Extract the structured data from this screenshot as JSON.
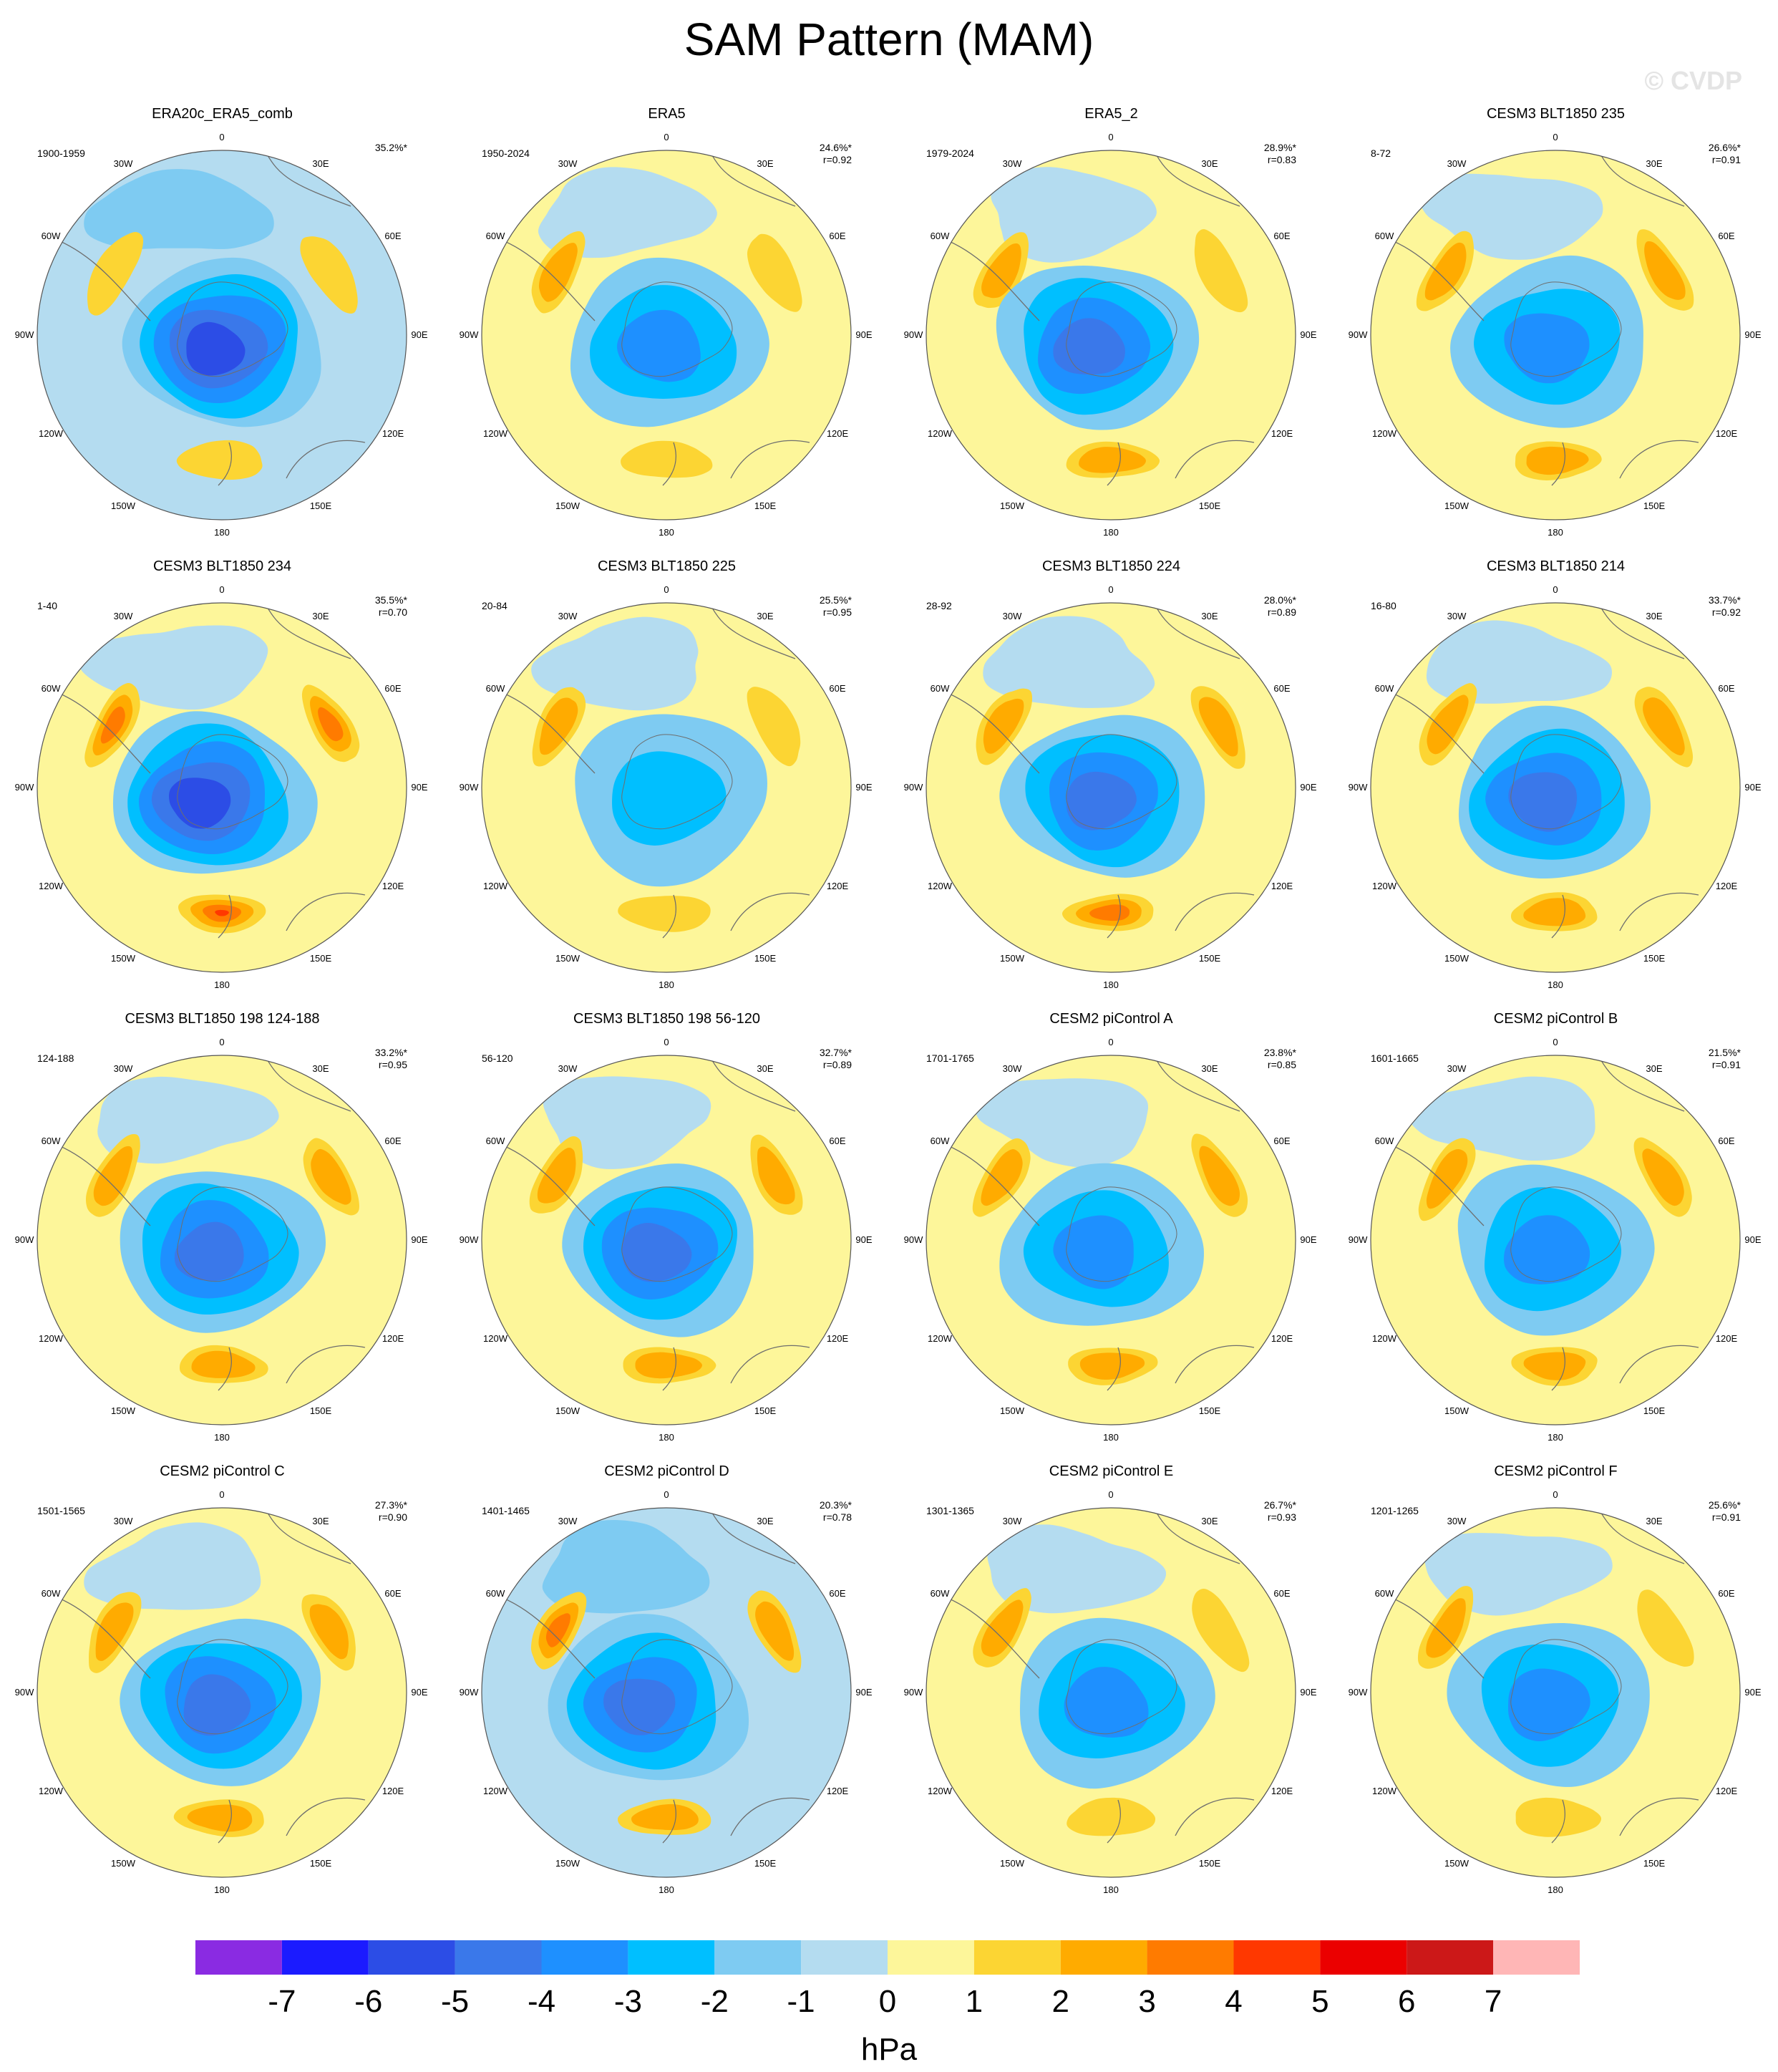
{
  "title": "SAM Pattern (MAM)",
  "watermark": "© CVDP",
  "colors": {
    "background": "#ffffff",
    "coast": "#6e6e6e",
    "ring": "#555555"
  },
  "lon_labels": [
    "0",
    "30E",
    "60E",
    "90E",
    "120E",
    "150E",
    "180",
    "150W",
    "120W",
    "90W",
    "60W",
    "30W"
  ],
  "chart_data": {
    "type": "polar-contour-map",
    "units": "hPa",
    "colorbar": {
      "ticks": [
        "-7",
        "-6",
        "-5",
        "-4",
        "-3",
        "-2",
        "-1",
        "0",
        "1",
        "2",
        "3",
        "4",
        "5",
        "6",
        "7"
      ],
      "colors": [
        "#8a2be2",
        "#1b1bff",
        "#2c4de6",
        "#3a78ea",
        "#1e90ff",
        "#00bfff",
        "#7ecbf2",
        "#b4dcf0",
        "#fdf69a",
        "#fcd533",
        "#ffab00",
        "#ff7b00",
        "#ff3800",
        "#eb0000",
        "#cc1818",
        "#ffb6b6"
      ],
      "levels": [
        -7,
        -6,
        -5,
        -4,
        -3,
        -2,
        -1,
        0,
        1,
        2,
        3,
        4,
        5,
        6,
        7
      ]
    },
    "panels": [
      {
        "title": "ERA20c_ERA5_comb",
        "period": "1900-1959",
        "pct": "35.2%*",
        "r": "",
        "ring": -0.6,
        "low": [
          -5,
          0.5,
          0
        ],
        "high": [
          1,
          1,
          1
        ]
      },
      {
        "title": "ERA5",
        "period": "1950-2024",
        "pct": "24.6%*",
        "r": "r=0.92",
        "ring": 0.2,
        "low": [
          -3,
          0.2,
          0
        ],
        "high": [
          2,
          1,
          1
        ]
      },
      {
        "title": "ERA5_2",
        "period": "1979-2024",
        "pct": "28.9%*",
        "r": "r=0.83",
        "ring": 0.1,
        "low": [
          -4,
          -0.8,
          0
        ],
        "high": [
          2,
          1,
          2
        ]
      },
      {
        "title": "CESM3 BLT1850 235",
        "period": "8-72",
        "pct": "26.6%*",
        "r": "r=0.91",
        "ring": 0.6,
        "low": [
          -3,
          0,
          0
        ],
        "high": [
          2,
          2,
          2
        ]
      },
      {
        "title": "CESM3 BLT1850 234",
        "period": "1-40",
        "pct": "35.5%*",
        "r": "r=0.70",
        "ring": 0.6,
        "low": [
          -5,
          -0.6,
          0
        ],
        "high": [
          3,
          3,
          4
        ]
      },
      {
        "title": "CESM3 BLT1850 225",
        "period": "20-84",
        "pct": "25.5%*",
        "r": "r=0.95",
        "ring": 0.5,
        "low": [
          -2,
          0.4,
          0
        ],
        "high": [
          2,
          1,
          1
        ]
      },
      {
        "title": "CESM3 BLT1850 224",
        "period": "28-92",
        "pct": "28.0%*",
        "r": "r=0.89",
        "ring": 0.4,
        "low": [
          -4,
          0,
          0
        ],
        "high": [
          2,
          2,
          3
        ]
      },
      {
        "title": "CESM3 BLT1850 214",
        "period": "16-80",
        "pct": "33.7%*",
        "r": "r=0.92",
        "ring": 0.8,
        "low": [
          -4,
          0,
          0
        ],
        "high": [
          2,
          2,
          2
        ]
      },
      {
        "title": "CESM3 BLT1850 198 124-188",
        "period": "124-188",
        "pct": "33.2%*",
        "r": "r=0.95",
        "ring": 0.7,
        "low": [
          -4,
          0,
          0
        ],
        "high": [
          2,
          2,
          2
        ]
      },
      {
        "title": "CESM3 BLT1850 198 56-120",
        "period": "56-120",
        "pct": "32.7%*",
        "r": "r=0.89",
        "ring": 0.3,
        "low": [
          -4,
          0,
          0
        ],
        "high": [
          2,
          2,
          2
        ]
      },
      {
        "title": "CESM2 piControl A",
        "period": "1701-1765",
        "pct": "23.8%*",
        "r": "r=0.85",
        "ring": 0.5,
        "low": [
          -3,
          -0.5,
          0
        ],
        "high": [
          2,
          2,
          2
        ]
      },
      {
        "title": "CESM2 piControl B",
        "period": "1601-1665",
        "pct": "21.5%*",
        "r": "r=0.91",
        "ring": 0.5,
        "low": [
          -3,
          0,
          0
        ],
        "high": [
          2,
          2,
          2
        ]
      },
      {
        "title": "CESM2 piControl C",
        "period": "1501-1565",
        "pct": "27.3%*",
        "r": "r=0.90",
        "ring": 0.7,
        "low": [
          -4,
          0.4,
          0
        ],
        "high": [
          2,
          2,
          2
        ]
      },
      {
        "title": "CESM2 piControl D",
        "period": "1401-1465",
        "pct": "20.3%*",
        "r": "r=0.78",
        "ring": -0.2,
        "low": [
          -4,
          -1.2,
          0
        ],
        "high": [
          3,
          2,
          2
        ]
      },
      {
        "title": "CESM2 piControl E",
        "period": "1301-1365",
        "pct": "26.7%*",
        "r": "r=0.93",
        "ring": 0.6,
        "low": [
          -3,
          0.3,
          0
        ],
        "high": [
          2,
          1,
          1
        ]
      },
      {
        "title": "CESM2 piControl F",
        "period": "1201-1265",
        "pct": "25.6%*",
        "r": "r=0.91",
        "ring": 0.6,
        "low": [
          -3,
          0,
          0
        ],
        "high": [
          2,
          1,
          1
        ]
      }
    ]
  }
}
